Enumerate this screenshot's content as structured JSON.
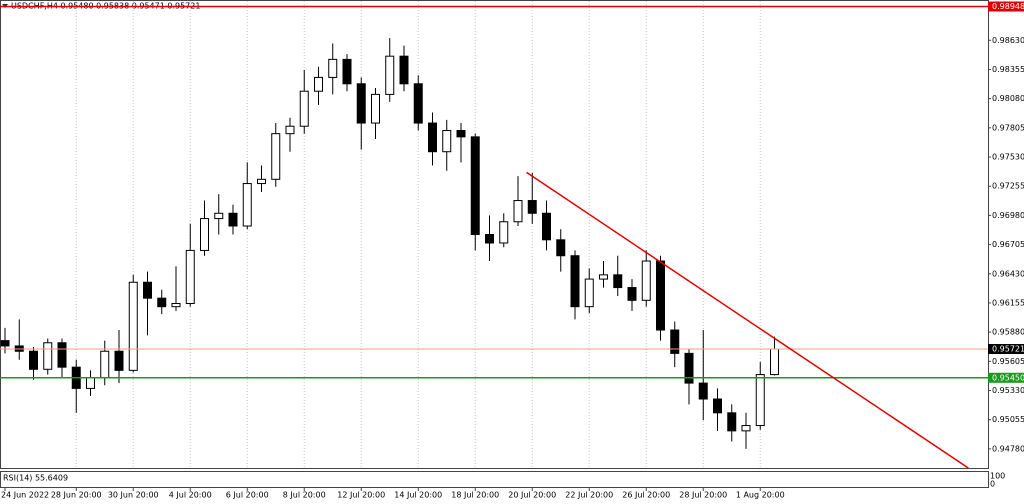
{
  "chart_data": {
    "type": "candlestick",
    "title": "USDCHF,H4  0.95480 0.95838 0.95471 0.95721",
    "categories": [
      "24 Jun 2022",
      null,
      null,
      null,
      null,
      "28 Jun 20:00",
      null,
      null,
      null,
      "30 Jun 20:00",
      null,
      null,
      null,
      "4 Jul 20:00",
      null,
      null,
      null,
      "6 Jul 20:00",
      null,
      null,
      null,
      "8 Jul 20:00",
      null,
      null,
      null,
      "12 Jul 20:00",
      null,
      null,
      null,
      "14 Jul 20:00",
      null,
      null,
      null,
      "18 Jul 20:00",
      null,
      null,
      null,
      "20 Jul 20:00",
      null,
      null,
      null,
      "22 Jul 20:00",
      null,
      null,
      null,
      "26 Jul 20:00",
      null,
      null,
      null,
      "28 Jul 20:00",
      null,
      null,
      null,
      "1 Aug 20:00",
      null
    ],
    "open": [
      0.958,
      0.9575,
      0.957,
      0.9553,
      0.9578,
      0.9555,
      0.9535,
      0.9545,
      0.957,
      0.9552,
      0.9635,
      0.962,
      0.9612,
      0.9615,
      0.9665,
      0.9695,
      0.97,
      0.9688,
      0.9728,
      0.9732,
      0.9775,
      0.9782,
      0.9815,
      0.9828,
      0.9845,
      0.9822,
      0.9785,
      0.9812,
      0.9848,
      0.9822,
      0.9785,
      0.9758,
      0.9778,
      0.9772,
      0.968,
      0.9672,
      0.9692,
      0.9712,
      0.97,
      0.9675,
      0.966,
      0.9612,
      0.9638,
      0.9642,
      0.963,
      0.9618,
      0.9655,
      0.959,
      0.9568,
      0.954,
      0.9525,
      0.9512,
      0.9495,
      0.95,
      0.9548
    ],
    "high": [
      0.9592,
      0.96,
      0.9574,
      0.9582,
      0.9582,
      0.9562,
      0.9552,
      0.958,
      0.959,
      0.9642,
      0.9645,
      0.9628,
      0.965,
      0.969,
      0.9712,
      0.9718,
      0.9708,
      0.9748,
      0.9745,
      0.9785,
      0.979,
      0.9835,
      0.9838,
      0.986,
      0.985,
      0.9828,
      0.9818,
      0.9865,
      0.9858,
      0.983,
      0.9795,
      0.9788,
      0.9785,
      0.9775,
      0.9698,
      0.97,
      0.9735,
      0.9738,
      0.9712,
      0.9685,
      0.9665,
      0.9648,
      0.9655,
      0.966,
      0.9638,
      0.9665,
      0.966,
      0.9598,
      0.9572,
      0.959,
      0.9535,
      0.952,
      0.9512,
      0.956,
      0.95838
    ],
    "low": [
      0.9568,
      0.9562,
      0.9543,
      0.9548,
      0.9545,
      0.9512,
      0.9528,
      0.9538,
      0.954,
      0.955,
      0.9585,
      0.9605,
      0.9608,
      0.9612,
      0.966,
      0.968,
      0.968,
      0.9685,
      0.972,
      0.9725,
      0.9758,
      0.9775,
      0.9802,
      0.9812,
      0.9815,
      0.976,
      0.977,
      0.9805,
      0.9815,
      0.9778,
      0.9745,
      0.974,
      0.9748,
      0.9665,
      0.9655,
      0.9668,
      0.9688,
      0.969,
      0.9665,
      0.9645,
      0.96,
      0.9606,
      0.963,
      0.9622,
      0.9608,
      0.9612,
      0.958,
      0.9555,
      0.952,
      0.9505,
      0.9495,
      0.9485,
      0.9478,
      0.9496,
      0.95471
    ],
    "close": [
      0.9575,
      0.957,
      0.9553,
      0.9578,
      0.9555,
      0.9535,
      0.9545,
      0.957,
      0.9552,
      0.9635,
      0.962,
      0.9612,
      0.9615,
      0.9665,
      0.9695,
      0.97,
      0.9688,
      0.9728,
      0.9732,
      0.9775,
      0.9782,
      0.9815,
      0.9828,
      0.9845,
      0.9822,
      0.9785,
      0.9812,
      0.9848,
      0.9822,
      0.9785,
      0.9758,
      0.9778,
      0.9772,
      0.968,
      0.9672,
      0.9692,
      0.9712,
      0.97,
      0.9675,
      0.966,
      0.9612,
      0.9638,
      0.9642,
      0.963,
      0.9618,
      0.9655,
      0.959,
      0.9568,
      0.954,
      0.9525,
      0.9512,
      0.9495,
      0.95,
      0.9548,
      0.95721
    ],
    "ylim": [
      0.946,
      0.99
    ],
    "yticks": [
      {
        "value": 0.9863,
        "label": "0.98630"
      },
      {
        "value": 0.98355,
        "label": "0.98355"
      },
      {
        "value": 0.9808,
        "label": "0.98080"
      },
      {
        "value": 0.97805,
        "label": "0.97805"
      },
      {
        "value": 0.9753,
        "label": "0.97530"
      },
      {
        "value": 0.97255,
        "label": "0.97255"
      },
      {
        "value": 0.9698,
        "label": "0.96980"
      },
      {
        "value": 0.96705,
        "label": "0.96705"
      },
      {
        "value": 0.9643,
        "label": "0.96430"
      },
      {
        "value": 0.96155,
        "label": "0.96155"
      },
      {
        "value": 0.9588,
        "label": "0.95880"
      },
      {
        "value": 0.95605,
        "label": "0.95605"
      },
      {
        "value": 0.9533,
        "label": "0.95330"
      },
      {
        "value": 0.95055,
        "label": "0.95055"
      },
      {
        "value": 0.9478,
        "label": "0.94780"
      }
    ],
    "hlines": [
      {
        "value": 0.98948,
        "label": "0.98948",
        "color": "#e00000"
      },
      {
        "value": 0.95721,
        "label": "0.95721",
        "color": "#f0a080"
      },
      {
        "value": 0.9545,
        "label": "0.95450",
        "color": "#1a9a1a"
      }
    ],
    "trendline": {
      "color": "#e00000",
      "start": [
        36.6,
        0.97385
      ],
      "end": [
        67.6,
        0.946
      ]
    },
    "indicator": {
      "label": "RSI(14) 55.6409",
      "yticks": [
        100,
        0
      ]
    }
  }
}
